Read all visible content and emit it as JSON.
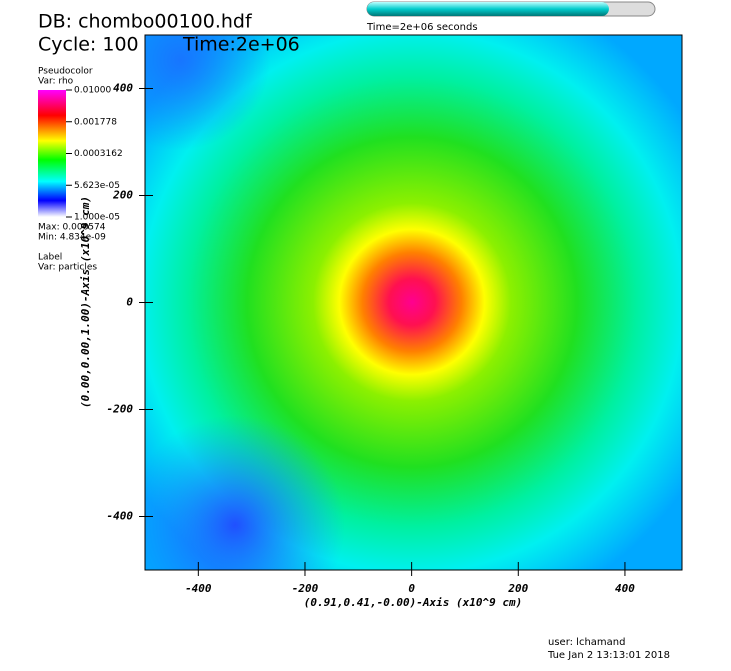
{
  "chart_data": {
    "type": "pseudocolor",
    "db_label": "DB: chombo00100.hdf",
    "cycle_label": "Cycle: 100",
    "time_label": "Time:2e+06",
    "time_slider": {
      "label": "Time=2e+06 seconds",
      "fraction": 0.84
    },
    "legend": {
      "plot": "Pseudocolor",
      "var": "Var: rho",
      "scale": "log",
      "lim": [
        1e-05,
        0.01
      ],
      "ticks": [
        {
          "value": 0.01,
          "label": "0.01000"
        },
        {
          "value": 0.001778,
          "label": "0.001778"
        },
        {
          "value": 0.0003162,
          "label": "0.0003162"
        },
        {
          "value": 5.623e-05,
          "label": "5.623e-05"
        },
        {
          "value": 1e-05,
          "label": "1.000e-05"
        }
      ],
      "max_label": "Max: 0.006574",
      "min_label": "Min: 4.834e-09"
    },
    "label_legend": {
      "plot": "Label",
      "var": "Var: particles"
    },
    "xlabel": "(0.91,0.41,-0.00)-Axis (x10^9 cm)",
    "ylabel": "(0.00,0.00,1.00)-Axis (x10^9 cm)",
    "xlim": [
      -500,
      507
    ],
    "ylim": [
      -500,
      500
    ],
    "xticks": [
      -400,
      -200,
      0,
      200,
      400
    ],
    "yticks": [
      -400,
      -200,
      0,
      200,
      400
    ],
    "user": "user: lchamand",
    "date": "Tue Jan  2 13:13:01 2018"
  }
}
